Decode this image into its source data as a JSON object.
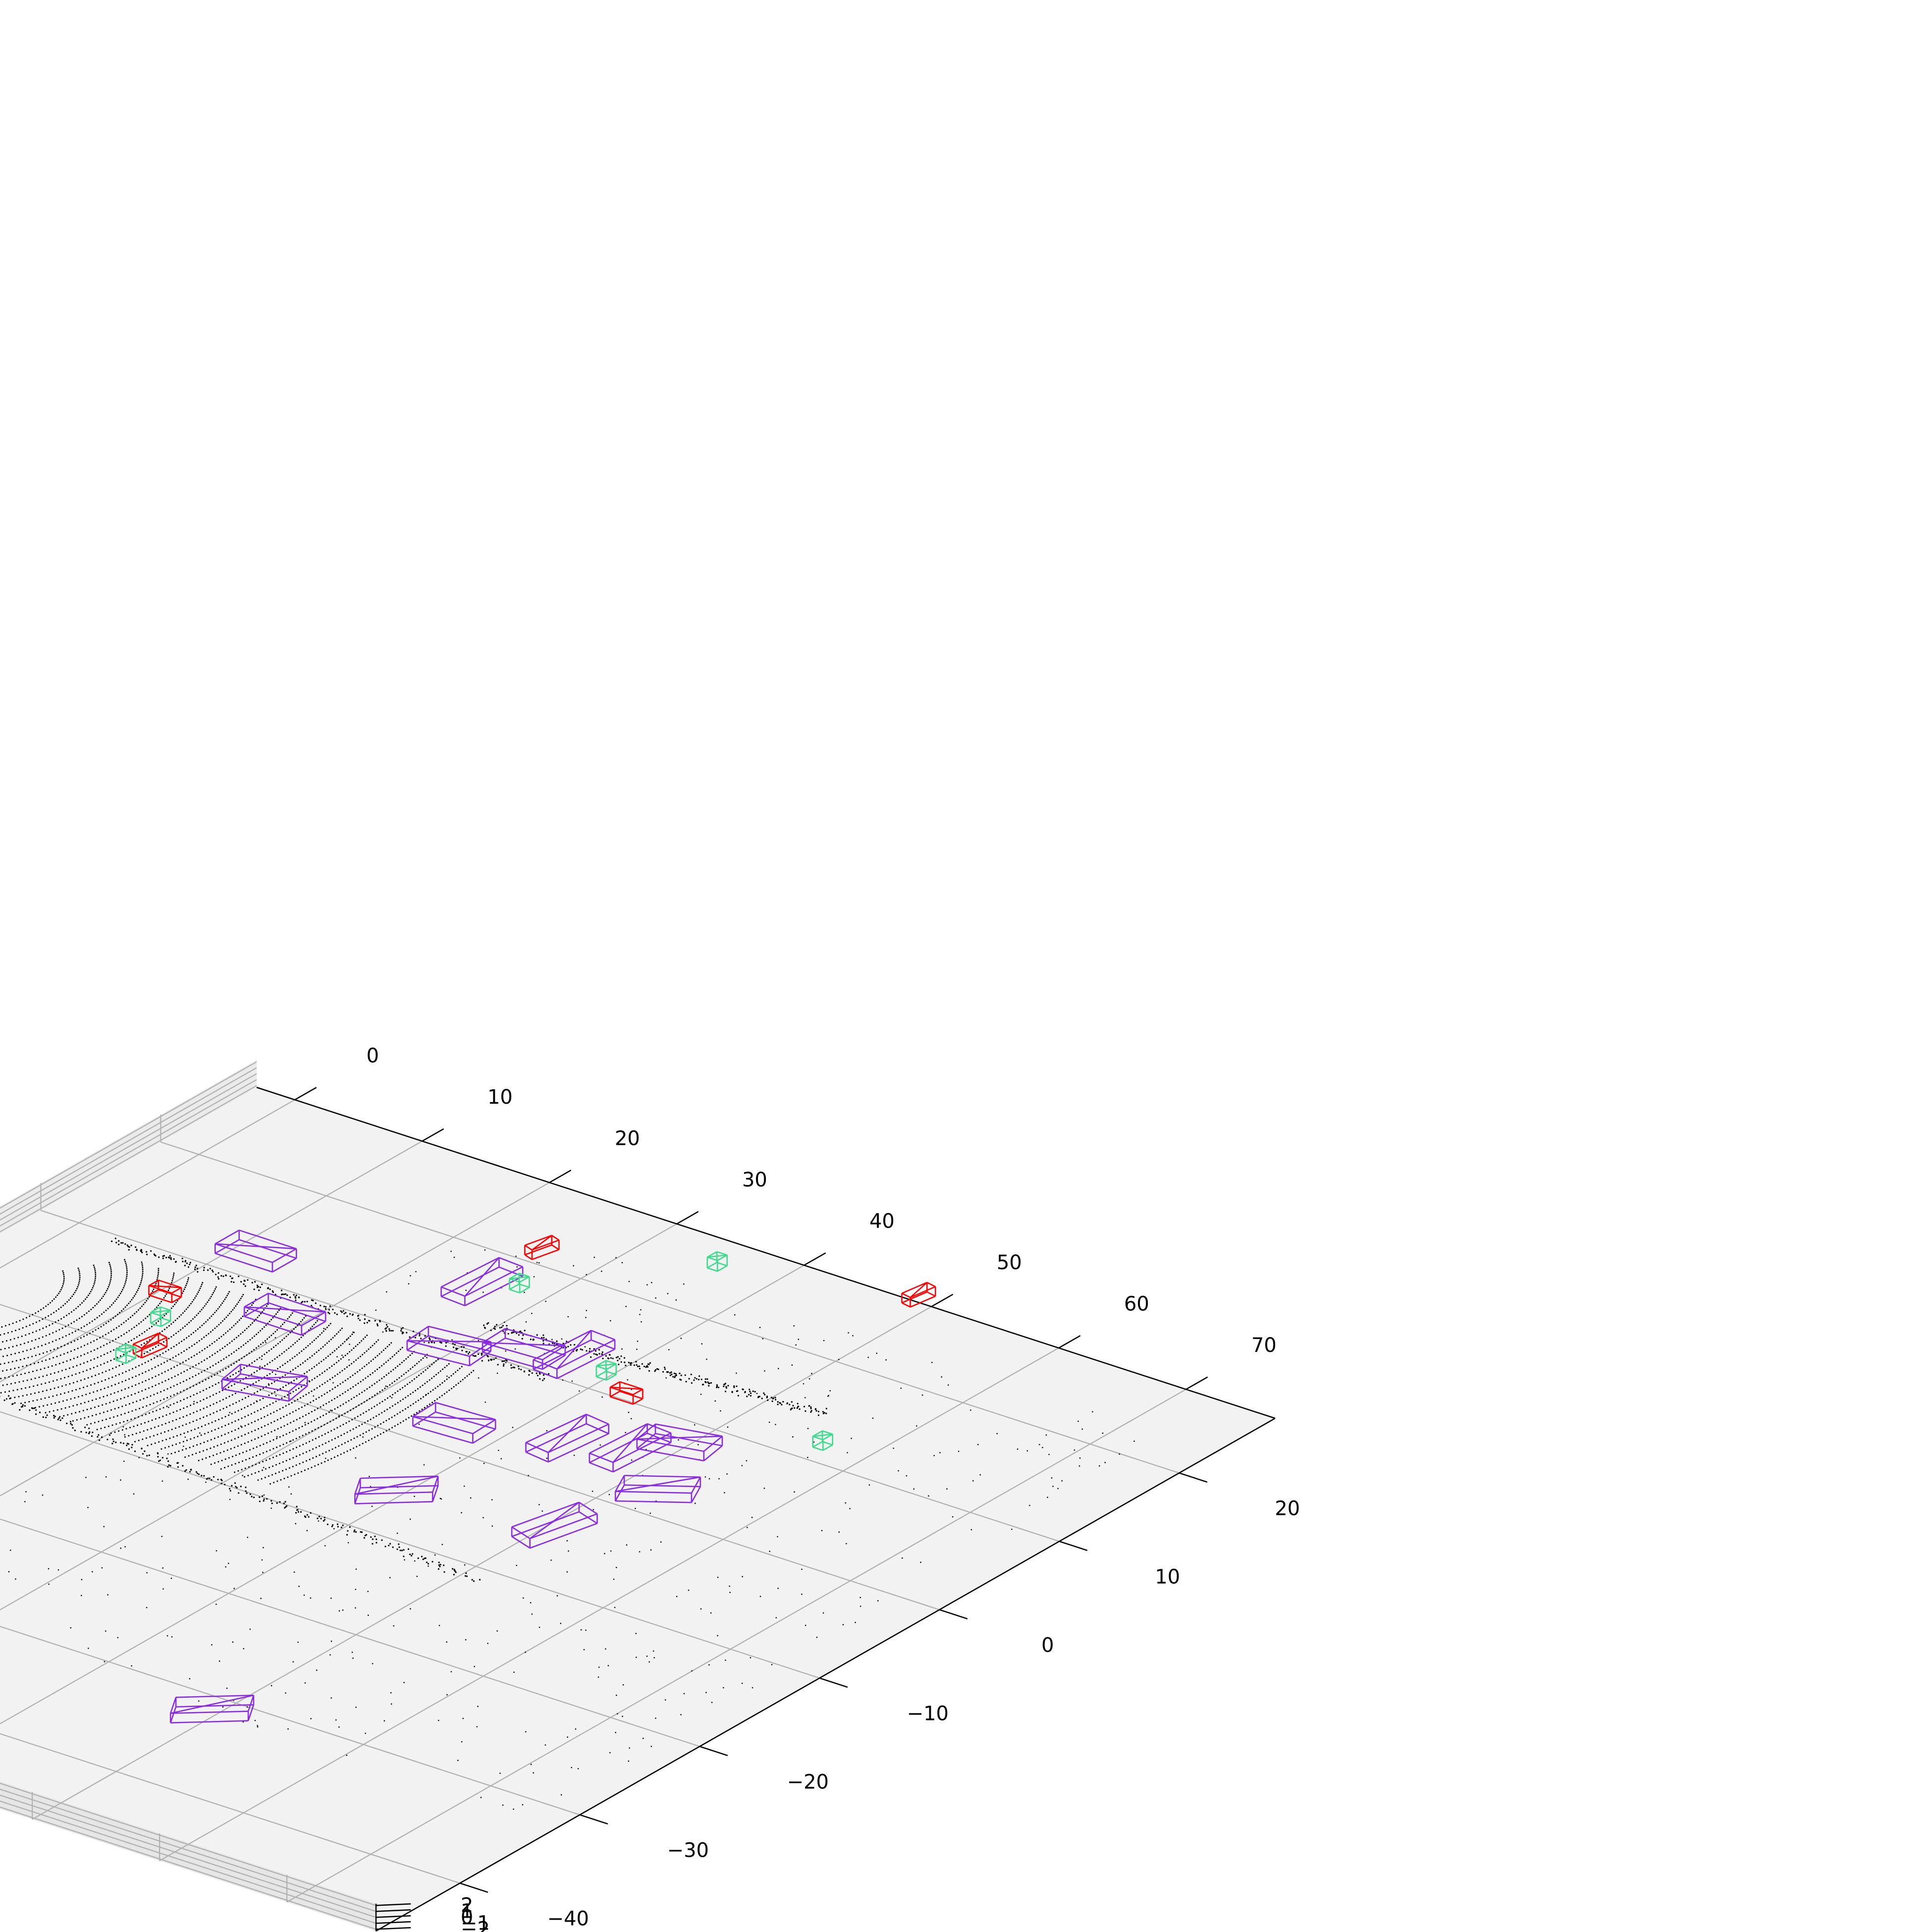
{
  "chart_data": {
    "type": "scatter",
    "projection": "3d",
    "title": "",
    "xlabel": "",
    "ylabel": "",
    "zlabel": "",
    "xlim": [
      -3,
      77
    ],
    "ylim": [
      -47,
      28
    ],
    "zlim": [
      -2.3,
      2.3
    ],
    "grid": true,
    "legend": "none",
    "pane_color": "#f2f2f2",
    "grid_color": "#b0b0b0",
    "x_ticks": [
      "0",
      "10",
      "20",
      "30",
      "40",
      "50",
      "60",
      "70"
    ],
    "y_ticks": [
      "20",
      "10",
      "0",
      "−10",
      "−20",
      "−30",
      "−40"
    ],
    "z_ticks": [
      "2",
      "1",
      "0",
      "−1",
      "−2"
    ],
    "x_tick_values": [
      0,
      10,
      20,
      30,
      40,
      50,
      60,
      70
    ],
    "y_tick_values": [
      20,
      10,
      0,
      -10,
      -20,
      -30,
      -40
    ],
    "z_tick_values": [
      2,
      1,
      0,
      -1,
      -2
    ],
    "point_cloud": {
      "color": "#000000",
      "description_points": "lidar returns, x forward 0-55 m, y lateral -30..25 m",
      "arcs": [
        {
          "cx": 0,
          "cy": 0,
          "radius_min": 6,
          "radius_max": 34,
          "y_min": -9,
          "y_max": 8
        }
      ],
      "lines": [
        {
          "x0": 4,
          "y0": 8.5,
          "x1": 38,
          "y1": 9
        },
        {
          "x0": 4,
          "y0": -9,
          "x1": 52,
          "y1": -12
        },
        {
          "x0": 30,
          "y0": 12,
          "x1": 55,
          "y1": 14
        }
      ]
    },
    "boxes": [
      {
        "class": "car",
        "color": "#8a2be2",
        "center": [
          5,
          -19,
          -1
        ],
        "size": [
          4.5,
          2.0,
          1.6
        ],
        "yaw": 0.15
      },
      {
        "class": "car",
        "color": "#8a2be2",
        "center": [
          8,
          -22,
          -1
        ],
        "size": [
          4.5,
          2.0,
          1.6
        ],
        "yaw": 1.35
      },
      {
        "class": "car",
        "color": "#8a2be2",
        "center": [
          12,
          12,
          -1
        ],
        "size": [
          4.5,
          2.0,
          1.6
        ],
        "yaw": 0.0
      },
      {
        "class": "car",
        "color": "#8a2be2",
        "center": [
          19,
          7,
          -1
        ],
        "size": [
          4.5,
          2.0,
          1.6
        ],
        "yaw": 0.0
      },
      {
        "class": "car",
        "color": "#8a2be2",
        "center": [
          26,
          16,
          -1
        ],
        "size": [
          4.5,
          2.0,
          1.6
        ],
        "yaw": 1.5
      },
      {
        "class": "car",
        "color": "#8a2be2",
        "center": [
          30,
          9,
          -1
        ],
        "size": [
          4.5,
          2.0,
          1.6
        ],
        "yaw": 0.1
      },
      {
        "class": "car",
        "color": "#8a2be2",
        "center": [
          34,
          11,
          -1
        ],
        "size": [
          4.5,
          2.0,
          1.6
        ],
        "yaw": 0.05
      },
      {
        "class": "car",
        "color": "#8a2be2",
        "center": [
          37,
          12,
          -1
        ],
        "size": [
          4.5,
          2.0,
          1.6
        ],
        "yaw": 1.5
      },
      {
        "class": "car",
        "color": "#8a2be2",
        "center": [
          37,
          2,
          -1
        ],
        "size": [
          4.5,
          2.0,
          1.6
        ],
        "yaw": 0.05
      },
      {
        "class": "car",
        "color": "#8a2be2",
        "center": [
          44,
          4,
          -1
        ],
        "size": [
          4.5,
          2.0,
          1.6
        ],
        "yaw": 1.45
      },
      {
        "class": "car",
        "color": "#8a2be2",
        "center": [
          48,
          5,
          -1
        ],
        "size": [
          4.5,
          2.0,
          1.6
        ],
        "yaw": 1.5
      },
      {
        "class": "car",
        "color": "#8a2be2",
        "center": [
          50,
          7,
          -1
        ],
        "size": [
          4.5,
          2.0,
          1.6
        ],
        "yaw": 0.2
      },
      {
        "class": "car",
        "color": "#8a2be2",
        "center": [
          40,
          -6,
          -1
        ],
        "size": [
          4.5,
          2.0,
          1.6
        ],
        "yaw": 0.6
      },
      {
        "class": "car",
        "color": "#8a2be2",
        "center": [
          53,
          2,
          -1
        ],
        "size": [
          4.5,
          2.0,
          1.6
        ],
        "yaw": 0.5
      },
      {
        "class": "car",
        "color": "#8a2be2",
        "center": [
          51,
          -4.5,
          -1
        ],
        "size": [
          4.5,
          2.0,
          1.6
        ],
        "yaw": 1.3
      },
      {
        "class": "car",
        "color": "#8a2be2",
        "center": [
          24,
          0,
          -1
        ],
        "size": [
          4.5,
          2.0,
          1.6
        ],
        "yaw": 0.2
      },
      {
        "class": "car",
        "color": "#8a2be2",
        "center": [
          50,
          -32,
          -1
        ],
        "size": [
          4.5,
          2.0,
          1.6
        ],
        "yaw": 0.6
      },
      {
        "class": "cyclist",
        "color": "#ff0000",
        "center": [
          11,
          5.5,
          -1
        ],
        "size": [
          1.8,
          0.8,
          1.6
        ],
        "yaw": 0.0
      },
      {
        "class": "cyclist",
        "color": "#ff0000",
        "center": [
          15,
          0,
          -1
        ],
        "size": [
          1.8,
          0.8,
          1.6
        ],
        "yaw": 1.4
      },
      {
        "class": "cyclist",
        "color": "#ff0000",
        "center": [
          26,
          21,
          -1
        ],
        "size": [
          1.8,
          0.8,
          1.6
        ],
        "yaw": 1.3
      },
      {
        "class": "cyclist",
        "color": "#ff0000",
        "center": [
          43,
          10,
          -1
        ],
        "size": [
          1.8,
          0.8,
          1.6
        ],
        "yaw": 0.0
      },
      {
        "class": "cyclist",
        "color": "#ff0000",
        "center": [
          49,
          28,
          -1
        ],
        "size": [
          1.8,
          0.8,
          1.6
        ],
        "yaw": 1.4
      },
      {
        "class": "pedestrian",
        "color": "#3cdc8c",
        "center": [
          13,
          3,
          -1
        ],
        "size": [
          0.8,
          0.8,
          1.8
        ],
        "yaw": 0.0
      },
      {
        "class": "pedestrian",
        "color": "#3cdc8c",
        "center": [
          14.5,
          -1.5,
          -1
        ],
        "size": [
          0.8,
          0.8,
          1.8
        ],
        "yaw": 0.0
      },
      {
        "class": "pedestrian",
        "color": "#3cdc8c",
        "center": [
          28,
          17,
          -1
        ],
        "size": [
          0.8,
          0.8,
          1.8
        ],
        "yaw": 0.0
      },
      {
        "class": "pedestrian",
        "color": "#3cdc8c",
        "center": [
          36,
          25,
          -1
        ],
        "size": [
          0.8,
          0.8,
          1.8
        ],
        "yaw": 0.0
      },
      {
        "class": "pedestrian",
        "color": "#3cdc8c",
        "center": [
          40,
          11.5,
          -1
        ],
        "size": [
          0.8,
          0.8,
          1.8
        ],
        "yaw": 0.0
      },
      {
        "class": "pedestrian",
        "color": "#3cdc8c",
        "center": [
          57,
          11.5,
          -1
        ],
        "size": [
          0.8,
          0.8,
          1.8
        ],
        "yaw": 0.0
      }
    ]
  }
}
